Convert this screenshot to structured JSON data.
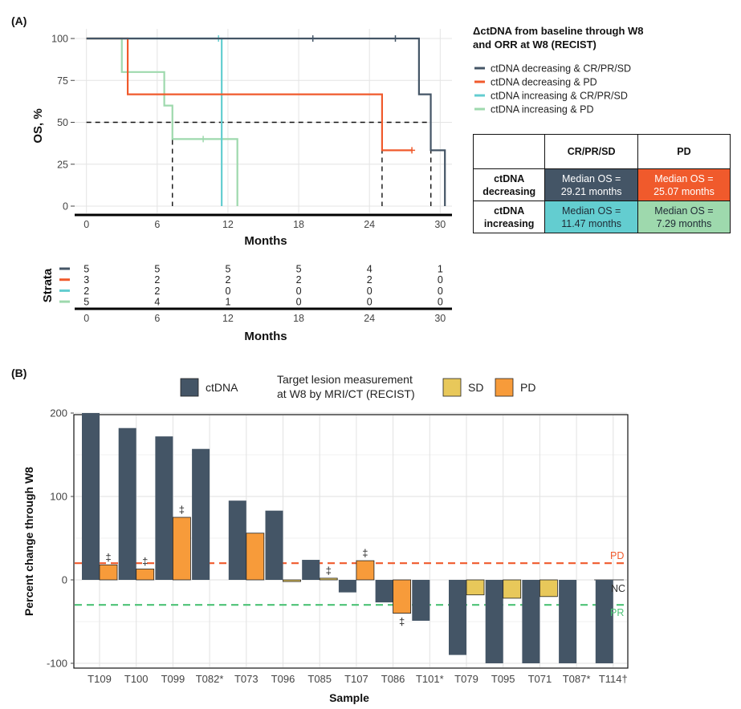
{
  "panel_a": {
    "label": "(A)",
    "legend_title_line1": "ΔctDNA from baseline through W8",
    "legend_title_line2": "and ORR at W8 (RECIST)",
    "table": {
      "headers": [
        "",
        "CR/PR/SD",
        "PD"
      ],
      "rows": [
        {
          "head1": "ctDNA",
          "head2": "decreasing",
          "cells": [
            {
              "l1": "Median OS =",
              "l2": "29.21 months",
              "color": "#445566"
            },
            {
              "l1": "Median OS =",
              "l2": "25.07 months",
              "color": "#f05a2c"
            }
          ]
        },
        {
          "head1": "ctDNA",
          "head2": "increasing",
          "cells": [
            {
              "l1": "Median OS =",
              "l2": "11.47 months",
              "color": "#63cdd0"
            },
            {
              "l1": "Median OS =",
              "l2": "7.29 months",
              "color": "#9ed9ad"
            }
          ]
        }
      ]
    },
    "risk_table": {
      "title": "Strata",
      "xlabel": "Months",
      "ticks": [
        "0",
        "6",
        "12",
        "18",
        "24",
        "30"
      ],
      "rows": [
        {
          "color": "#445566",
          "values": [
            "5",
            "5",
            "5",
            "5",
            "4",
            "1"
          ]
        },
        {
          "color": "#f05a2c",
          "values": [
            "3",
            "2",
            "2",
            "2",
            "2",
            "0"
          ]
        },
        {
          "color": "#63cdd0",
          "values": [
            "2",
            "2",
            "0",
            "0",
            "0",
            "0"
          ]
        },
        {
          "color": "#9ed9ad",
          "values": [
            "5",
            "4",
            "1",
            "0",
            "0",
            "0"
          ]
        }
      ]
    }
  },
  "panel_b": {
    "label": "(B)",
    "legend_ctdna": "ctDNA",
    "legend_title_line1": "Target lesion measurement",
    "legend_title_line2": "at W8 by MRI/CT (RECIST)",
    "legend_sd": "SD",
    "legend_pd": "PD",
    "line_pd_label": "PD",
    "line_pr_label": "PR",
    "nc_label": "NC",
    "dagger": "‡"
  },
  "chart_data": [
    {
      "type": "line",
      "subtype": "kaplan-meier",
      "xlabel": "Months",
      "ylabel": "OS, %",
      "xlim": [
        -1,
        31
      ],
      "ylim": [
        0,
        100
      ],
      "xticks": [
        0,
        6,
        12,
        18,
        24,
        30
      ],
      "xtick_labels": [
        "0",
        "6",
        "12",
        "18",
        "24",
        "30"
      ],
      "yticks": [
        0,
        25,
        50,
        75,
        100
      ],
      "ytick_labels": [
        "0",
        "25",
        "50",
        "75",
        "100"
      ],
      "grid": true,
      "legend_position": "right",
      "median_line": 50,
      "series": [
        {
          "name": "ctDNA decreasing & CR/PR/SD",
          "color": "#445566",
          "steps": [
            [
              0,
              100
            ],
            [
              28.2,
              100
            ],
            [
              28.2,
              66.7
            ],
            [
              29.2,
              66.7
            ],
            [
              29.2,
              33.3
            ],
            [
              30.4,
              33.3
            ],
            [
              30.4,
              0
            ]
          ],
          "censor": [
            [
              19.2,
              100
            ],
            [
              26.2,
              100
            ]
          ],
          "median": 29.21
        },
        {
          "name": "ctDNA decreasing & PD",
          "color": "#f05a2c",
          "steps": [
            [
              0,
              100
            ],
            [
              3.5,
              100
            ],
            [
              3.5,
              66.7
            ],
            [
              25.07,
              66.7
            ],
            [
              25.07,
              33.3
            ],
            [
              27.6,
              33.3
            ]
          ],
          "censor": [
            [
              27.6,
              33.3
            ]
          ],
          "median": 25.07
        },
        {
          "name": "ctDNA increasing & CR/PR/SD",
          "color": "#63cdd0",
          "steps": [
            [
              0,
              100
            ],
            [
              11.47,
              100
            ],
            [
              11.47,
              0
            ]
          ],
          "censor": [
            [
              11.2,
              100
            ]
          ],
          "median": 11.47
        },
        {
          "name": "ctDNA increasing & PD",
          "color": "#9ed9ad",
          "steps": [
            [
              0,
              100
            ],
            [
              3.0,
              100
            ],
            [
              3.0,
              80
            ],
            [
              6.6,
              80
            ],
            [
              6.6,
              60
            ],
            [
              7.29,
              60
            ],
            [
              7.29,
              40
            ],
            [
              12.8,
              40
            ],
            [
              12.8,
              0
            ]
          ],
          "censor": [
            [
              9.9,
              40
            ]
          ],
          "median": 7.29
        }
      ]
    },
    {
      "type": "bar",
      "xlabel": "Sample",
      "ylabel": "Percent change through W8",
      "ylim": [
        -110,
        210
      ],
      "yticks": [
        -100,
        0,
        100,
        200
      ],
      "ytick_labels": [
        "-100",
        "0",
        "100",
        "200"
      ],
      "grid": true,
      "categories": [
        "T109",
        "T100",
        "T099",
        "T082*",
        "T073",
        "T096",
        "T085",
        "T107",
        "T086",
        "T101*",
        "T079",
        "T095",
        "T071",
        "T087*",
        "T114†"
      ],
      "series": [
        {
          "name": "ctDNA",
          "color": "#445566",
          "values": [
            200,
            182,
            172,
            157,
            95,
            83,
            24,
            -15,
            -27,
            -49,
            -90,
            -100,
            -100,
            -100,
            -100
          ]
        },
        {
          "name": "Target lesion measurement",
          "colors_by_category": "SD=#e8c85a, PD=#f79b3a",
          "values": [
            18,
            13,
            75,
            null,
            56,
            -2,
            2,
            23,
            -40,
            null,
            -18,
            -22,
            -20,
            null,
            null
          ],
          "response": [
            "PD",
            "PD",
            "PD",
            null,
            "PD",
            "SD",
            "SD",
            "PD",
            "PD",
            null,
            "SD",
            "SD",
            "SD",
            null,
            null
          ],
          "dagger": [
            true,
            true,
            true,
            false,
            false,
            false,
            true,
            true,
            true,
            false,
            false,
            false,
            false,
            false,
            false
          ]
        }
      ],
      "reference_lines": [
        {
          "label": "PD",
          "value": 20,
          "color": "#f05a2c"
        },
        {
          "label": "PR",
          "value": -30,
          "color": "#4cc276"
        },
        {
          "label": "NC",
          "value": 0,
          "color": "#444444"
        }
      ]
    }
  ]
}
